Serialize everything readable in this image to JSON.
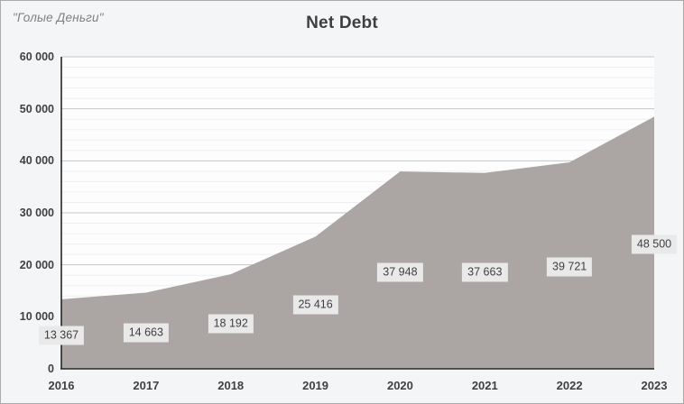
{
  "watermark": "\"Голые Деньги\"",
  "chart_data": {
    "type": "area",
    "title": "Net Debt",
    "categories": [
      "2016",
      "2017",
      "2018",
      "2019",
      "2020",
      "2021",
      "2022",
      "2023"
    ],
    "values": [
      13367,
      14663,
      18192,
      25416,
      37948,
      37663,
      39721,
      48500
    ],
    "value_labels": [
      "13 367",
      "14 663",
      "18 192",
      "25 416",
      "37 948",
      "37 663",
      "39 721",
      "48 500"
    ],
    "xlabel": "",
    "ylabel": "",
    "ylim": [
      0,
      60000
    ],
    "y_major_step": 10000,
    "y_minor_step": 2000,
    "y_tick_labels": [
      "0",
      "10 000",
      "20 000",
      "30 000",
      "40 000",
      "50 000",
      "60 000"
    ],
    "legend": "none",
    "grid": "horizontal major and minor gridlines",
    "data_label_placement": "centered inside area below line",
    "colors": {
      "area_fill": "#aba5a4",
      "plot_background": "#fdfdfe",
      "outer_background": "#f3f5f7",
      "major_gridline": "#c3c6c8",
      "minor_gridline": "#edeff1",
      "axis_line": "#262626",
      "tick_text": "#404040",
      "title_text": "#3f3f3f",
      "watermark_text": "#7f7f7f",
      "data_label_bg": "#e9e9e9",
      "data_label_text": "#3f3f3f",
      "frame_border": "#ababab"
    }
  }
}
